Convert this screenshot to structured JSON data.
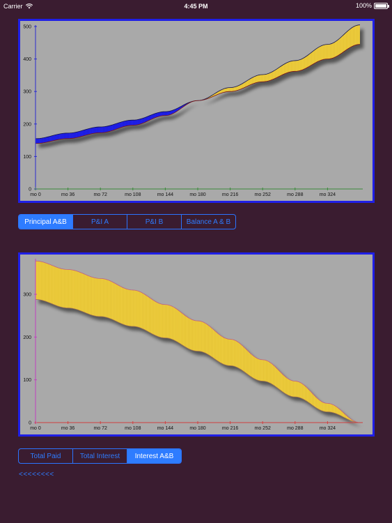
{
  "status_bar": {
    "carrier": "Carrier",
    "time": "4:45 PM",
    "battery": "100%"
  },
  "top_chart": {
    "chart_data": {
      "type": "area",
      "title": "",
      "xlabel": "",
      "ylabel": "",
      "x_tick_labels": [
        "mo 0",
        "mo 36",
        "mo 72",
        "mo 108",
        "mo 144",
        "mo 180",
        "mo 216",
        "mo 252",
        "mo 288",
        "mo 324"
      ],
      "x_ticks": [
        0,
        36,
        72,
        108,
        144,
        180,
        216,
        252,
        288,
        324
      ],
      "y_ticks": [
        0,
        100,
        200,
        300,
        400,
        500
      ],
      "xlim": [
        0,
        360
      ],
      "ylim": [
        0,
        500
      ],
      "series": [
        {
          "x": [
            0,
            36,
            72,
            108,
            144,
            180,
            216,
            252,
            288,
            324,
            360
          ],
          "values": [
            155,
            172,
            191,
            212,
            238,
            272,
            312,
            352,
            395,
            445,
            505
          ]
        },
        {
          "x": [
            0,
            36,
            72,
            108,
            144,
            180,
            216,
            252,
            288,
            324,
            360
          ],
          "values": [
            140,
            155,
            173,
            196,
            226,
            272,
            300,
            330,
            362,
            400,
            445
          ]
        }
      ],
      "band_colors": [
        "#2222ee",
        "#f0d040"
      ],
      "crossover_x": 180,
      "grid": false
    }
  },
  "segment_control_top": {
    "items": [
      {
        "label": "Principal A&B",
        "selected": true
      },
      {
        "label": "P&I A",
        "selected": false
      },
      {
        "label": "P&I B",
        "selected": false
      },
      {
        "label": "Balance A & B",
        "selected": false
      }
    ]
  },
  "bottom_chart": {
    "chart_data": {
      "type": "area",
      "title": "",
      "xlabel": "",
      "ylabel": "",
      "x_tick_labels": [
        "mo 0",
        "mo 36",
        "mo 72",
        "mo 108",
        "mo 144",
        "mo 180",
        "mo 216",
        "mo 252",
        "mo 288",
        "mo 324"
      ],
      "x_ticks": [
        0,
        36,
        72,
        108,
        144,
        180,
        216,
        252,
        288,
        324
      ],
      "y_ticks": [
        0,
        100,
        200,
        300
      ],
      "xlim": [
        0,
        360
      ],
      "ylim": [
        0,
        380
      ],
      "series": [
        {
          "x": [
            0,
            36,
            72,
            108,
            144,
            180,
            216,
            252,
            288,
            324,
            360
          ],
          "values": [
            378,
            358,
            337,
            310,
            276,
            238,
            195,
            147,
            97,
            45,
            0
          ]
        },
        {
          "x": [
            0,
            36,
            72,
            108,
            144,
            180,
            216,
            252,
            288,
            324,
            360
          ],
          "values": [
            288,
            268,
            248,
            225,
            198,
            167,
            133,
            97,
            60,
            25,
            0
          ]
        }
      ],
      "band_colors": [
        "#f0d040"
      ],
      "grid": false
    }
  },
  "segment_control_bottom": {
    "items": [
      {
        "label": "Total Paid",
        "selected": false
      },
      {
        "label": "Total Interest",
        "selected": false
      },
      {
        "label": "Interest A&B",
        "selected": true
      }
    ]
  },
  "back_link": {
    "label": "<<<<<<<<"
  }
}
